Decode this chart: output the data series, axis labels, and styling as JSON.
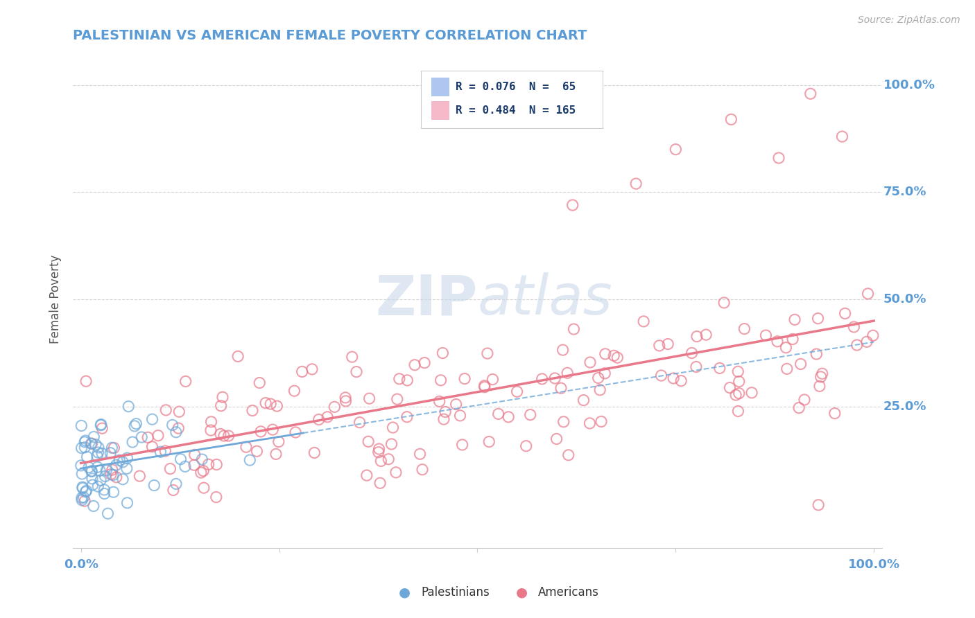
{
  "title": "PALESTINIAN VS AMERICAN FEMALE POVERTY CORRELATION CHART",
  "source": "Source: ZipAtlas.com",
  "ylabel": "Female Poverty",
  "y_tick_labels": [
    "100.0%",
    "75.0%",
    "50.0%",
    "25.0%"
  ],
  "y_tick_positions": [
    1.0,
    0.75,
    0.5,
    0.25
  ],
  "watermark": "ZIPatlas",
  "group1_label": "Palestinians",
  "group2_label": "Americans",
  "group1_color": "#6ea8d8",
  "group2_color": "#e8788a",
  "group1_R": 0.076,
  "group2_R": 0.484,
  "group1_N": 65,
  "group2_N": 165,
  "background_color": "#ffffff",
  "grid_color": "#d0d0d0",
  "title_color": "#5b9bd5",
  "axis_label_color": "#555555",
  "tick_label_color": "#5b9bd5",
  "source_color": "#aaaaaa",
  "legend_box_color1": "#aec6f0",
  "legend_box_color2": "#f4b8c8",
  "legend_text_color": "#1a3a6b",
  "watermark_color": "#c8d8ea"
}
